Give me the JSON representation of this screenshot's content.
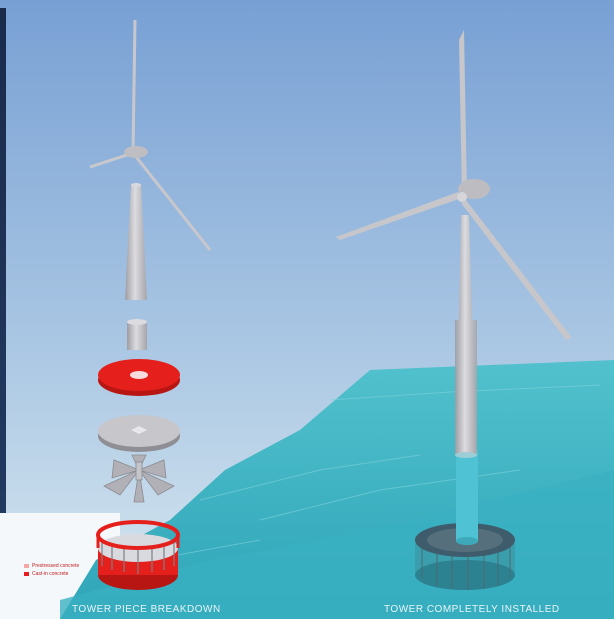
{
  "captions": {
    "left": "TOWER PIECE BREAKDOWN",
    "right": "TOWER COMPLETELY INSTALLED"
  },
  "legend": {
    "items": [
      {
        "label": "Prestressed concrete",
        "color": "#f4a6a6"
      },
      {
        "label": "Cast-in concrete",
        "color": "#e81c1c"
      }
    ]
  },
  "colors": {
    "sky_top": "#7fa6d6",
    "sky_bottom": "#d5e6f0",
    "sea": "#3fb3c4",
    "foundation_red": "#e5201c",
    "tower_grey": "#b8b8bc",
    "night_panel": "#1c2f52"
  }
}
